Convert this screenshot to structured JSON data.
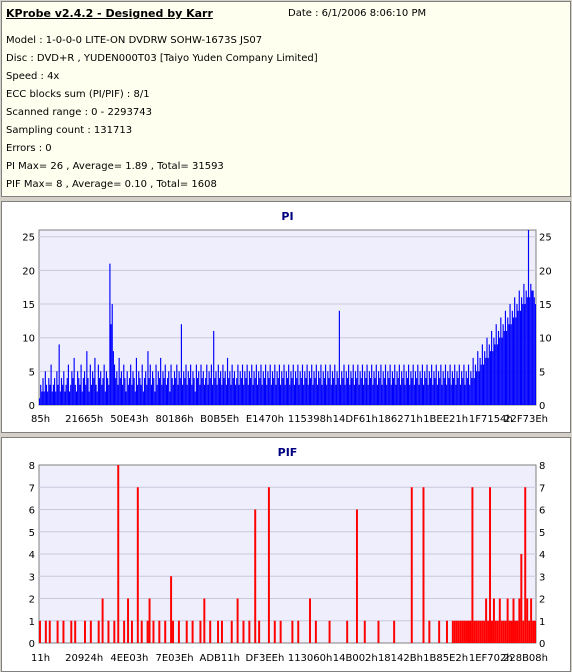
{
  "header": {
    "title": "KProbe v2.4.2 - Designed by Karr",
    "date": "Date : 6/1/2006 8:06:10 PM",
    "lines": [
      "Model : 1-0-0-0 LITE-ON DVDRW SOHW-1673S JS07",
      "Disc : DVD+R , YUDEN000T03 [Taiyo Yuden Company Limited]",
      "Speed : 4x",
      "ECC blocks sum (PI/PIF) : 8/1",
      "Scanned range : 0 - 2293743",
      "Sampling count : 131713",
      "Errors : 0",
      "PI Max= 26 , Average= 1.89 , Total= 31593",
      "PIF Max= 8 , Average= 0.10 , Total= 1608"
    ]
  },
  "chart_data": [
    {
      "type": "bar",
      "title": "PI",
      "color": "#0000ff",
      "ylim": [
        0,
        26
      ],
      "yticks": [
        0,
        5,
        10,
        15,
        20,
        25
      ],
      "xticks": [
        "85h",
        "21665h",
        "50E43h",
        "80186h",
        "B0B5Eh",
        "E1470h",
        "115398h",
        "14DF61h",
        "186271h",
        "1BEE21h",
        "1F7154h",
        "22F73Eh"
      ],
      "values": [
        1,
        3,
        2,
        4,
        2,
        5,
        3,
        2,
        4,
        3,
        6,
        2,
        3,
        4,
        2,
        5,
        3,
        9,
        2,
        4,
        3,
        5,
        2,
        3,
        4,
        6,
        2,
        3,
        5,
        4,
        7,
        3,
        2,
        5,
        4,
        3,
        6,
        2,
        4,
        5,
        3,
        8,
        4,
        2,
        6,
        3,
        5,
        4,
        7,
        3,
        2,
        6,
        4,
        5,
        3,
        4,
        6,
        2,
        5,
        4,
        3,
        21,
        12,
        15,
        8,
        6,
        4,
        5,
        3,
        7,
        4,
        5,
        3,
        6,
        4,
        2,
        5,
        3,
        4,
        6,
        3,
        5,
        4,
        2,
        7,
        3,
        5,
        4,
        3,
        6,
        2,
        4,
        5,
        3,
        8,
        4,
        6,
        3,
        5,
        4,
        2,
        6,
        3,
        5,
        4,
        7,
        3,
        5,
        4,
        6,
        3,
        4,
        5,
        2,
        6,
        4,
        3,
        5,
        4,
        6,
        3,
        5,
        4,
        12,
        3,
        5,
        4,
        6,
        3,
        5,
        4,
        6,
        3,
        5,
        4,
        2,
        6,
        4,
        5,
        3,
        6,
        4,
        5,
        3,
        4,
        6,
        3,
        5,
        4,
        6,
        3,
        11,
        4,
        5,
        3,
        6,
        4,
        5,
        3,
        6,
        4,
        5,
        3,
        7,
        4,
        5,
        3,
        6,
        4,
        5,
        3,
        4,
        6,
        3,
        5,
        4,
        6,
        3,
        5,
        4,
        6,
        3,
        5,
        4,
        6,
        3,
        5,
        4,
        6,
        3,
        5,
        4,
        6,
        3,
        5,
        4,
        6,
        3,
        5,
        4,
        6,
        3,
        5,
        4,
        6,
        3,
        5,
        4,
        6,
        3,
        5,
        4,
        6,
        3,
        5,
        4,
        6,
        3,
        5,
        4,
        6,
        3,
        5,
        4,
        6,
        3,
        5,
        4,
        6,
        3,
        5,
        4,
        6,
        3,
        5,
        4,
        6,
        3,
        5,
        4,
        6,
        3,
        5,
        4,
        6,
        3,
        5,
        4,
        6,
        3,
        5,
        4,
        6,
        3,
        5,
        4,
        6,
        3,
        5,
        4,
        14,
        3,
        5,
        4,
        6,
        3,
        5,
        4,
        6,
        3,
        5,
        4,
        6,
        3,
        5,
        4,
        6,
        3,
        5,
        4,
        6,
        3,
        5,
        4,
        6,
        3,
        5,
        4,
        6,
        3,
        5,
        4,
        6,
        3,
        5,
        4,
        6,
        3,
        5,
        4,
        6,
        3,
        5,
        4,
        6,
        3,
        5,
        4,
        6,
        3,
        5,
        4,
        6,
        3,
        5,
        4,
        6,
        3,
        5,
        4,
        6,
        3,
        5,
        4,
        6,
        3,
        5,
        4,
        6,
        3,
        5,
        4,
        6,
        3,
        5,
        4,
        6,
        3,
        5,
        4,
        6,
        3,
        5,
        4,
        6,
        3,
        5,
        4,
        6,
        3,
        5,
        4,
        6,
        3,
        5,
        4,
        6,
        3,
        5,
        4,
        6,
        3,
        5,
        4,
        6,
        3,
        5,
        4,
        6,
        3,
        5,
        4,
        6,
        3,
        5,
        4,
        7,
        4,
        6,
        5,
        8,
        5,
        7,
        6,
        9,
        6,
        8,
        7,
        10,
        7,
        9,
        8,
        11,
        8,
        10,
        9,
        12,
        9,
        11,
        10,
        13,
        10,
        12,
        11,
        14,
        11,
        13,
        12,
        15,
        12,
        14,
        13,
        16,
        13,
        15,
        14,
        17,
        14,
        16,
        15,
        18,
        15,
        17,
        16,
        26,
        16,
        18,
        17,
        17,
        16,
        15
      ]
    },
    {
      "type": "bar",
      "title": "PIF",
      "color": "#ff0000",
      "ylim": [
        0,
        8
      ],
      "yticks": [
        0,
        1,
        2,
        3,
        4,
        5,
        6,
        7,
        8
      ],
      "xticks": [
        "11h",
        "20924h",
        "4EE03h",
        "7E03Eh",
        "ADB11h",
        "DF3EEh",
        "113060h",
        "14B002h",
        "18142Bh",
        "1B85E2h",
        "1EF702h",
        "228B08h"
      ],
      "values": [
        1,
        0,
        0,
        1,
        0,
        1,
        0,
        0,
        0,
        1,
        0,
        0,
        1,
        0,
        0,
        0,
        1,
        0,
        1,
        0,
        0,
        0,
        0,
        1,
        0,
        0,
        1,
        0,
        0,
        0,
        1,
        0,
        2,
        0,
        0,
        1,
        0,
        0,
        1,
        0,
        8,
        0,
        0,
        1,
        0,
        2,
        0,
        1,
        0,
        0,
        7,
        0,
        1,
        0,
        0,
        1,
        2,
        0,
        1,
        0,
        0,
        1,
        0,
        0,
        1,
        0,
        0,
        3,
        1,
        0,
        0,
        1,
        0,
        0,
        0,
        1,
        0,
        0,
        1,
        0,
        0,
        0,
        1,
        0,
        2,
        0,
        0,
        1,
        0,
        0,
        0,
        1,
        0,
        1,
        0,
        0,
        0,
        0,
        1,
        0,
        0,
        2,
        0,
        0,
        1,
        0,
        0,
        1,
        0,
        0,
        6,
        0,
        1,
        0,
        0,
        0,
        0,
        7,
        0,
        0,
        1,
        0,
        0,
        1,
        0,
        0,
        0,
        0,
        0,
        1,
        0,
        0,
        1,
        0,
        0,
        0,
        0,
        0,
        2,
        0,
        0,
        1,
        0,
        0,
        0,
        0,
        0,
        0,
        1,
        0,
        0,
        0,
        0,
        0,
        0,
        0,
        0,
        1,
        0,
        0,
        0,
        0,
        6,
        0,
        0,
        0,
        1,
        0,
        0,
        0,
        0,
        0,
        0,
        1,
        0,
        0,
        0,
        0,
        0,
        0,
        0,
        1,
        0,
        0,
        0,
        0,
        0,
        0,
        0,
        0,
        7,
        0,
        0,
        0,
        0,
        0,
        7,
        0,
        0,
        1,
        0,
        0,
        0,
        0,
        1,
        0,
        0,
        0,
        1,
        0,
        0,
        1,
        1,
        1,
        1,
        1,
        1,
        1,
        1,
        1,
        1,
        7,
        1,
        1,
        1,
        1,
        1,
        1,
        2,
        1,
        7,
        1,
        2,
        1,
        1,
        2,
        1,
        1,
        1,
        2,
        1,
        1,
        2,
        1,
        1,
        2,
        4,
        1,
        7,
        2,
        1,
        2,
        1,
        1
      ]
    }
  ]
}
